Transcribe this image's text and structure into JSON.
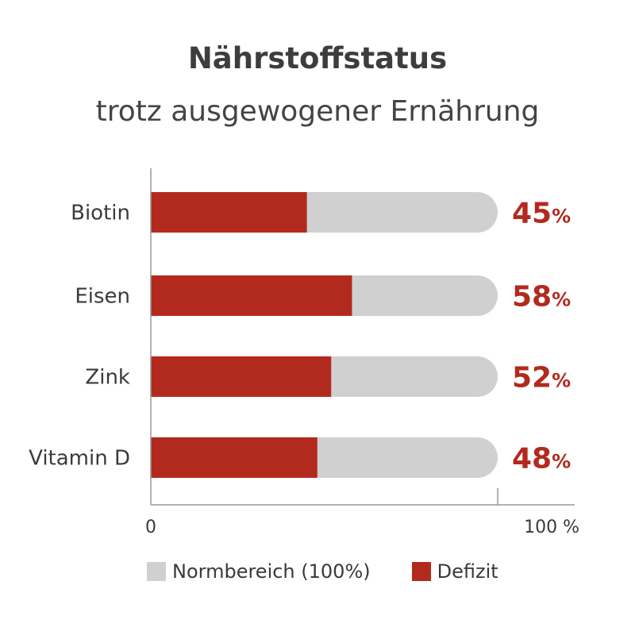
{
  "chart_data": {
    "type": "bar",
    "orientation": "horizontal",
    "title": "Nährstoffstatus",
    "subtitle": "trotz ausgewogener Ernährung",
    "categories": [
      "Biotin",
      "Eisen",
      "Zink",
      "Vitamin D"
    ],
    "series": [
      {
        "name": "Normbereich (100%)",
        "values": [
          100,
          100,
          100,
          100
        ],
        "color": "#d0d0d0"
      },
      {
        "name": "Defizit",
        "values": [
          45,
          58,
          52,
          48
        ],
        "color": "#b22a1e"
      }
    ],
    "data_labels": [
      "45",
      "58",
      "52",
      "48"
    ],
    "data_label_suffix": "%",
    "xlim": [
      0,
      100
    ],
    "x_ticks": [
      "0",
      "100 %"
    ],
    "legend_position": "bottom",
    "grid": false
  }
}
